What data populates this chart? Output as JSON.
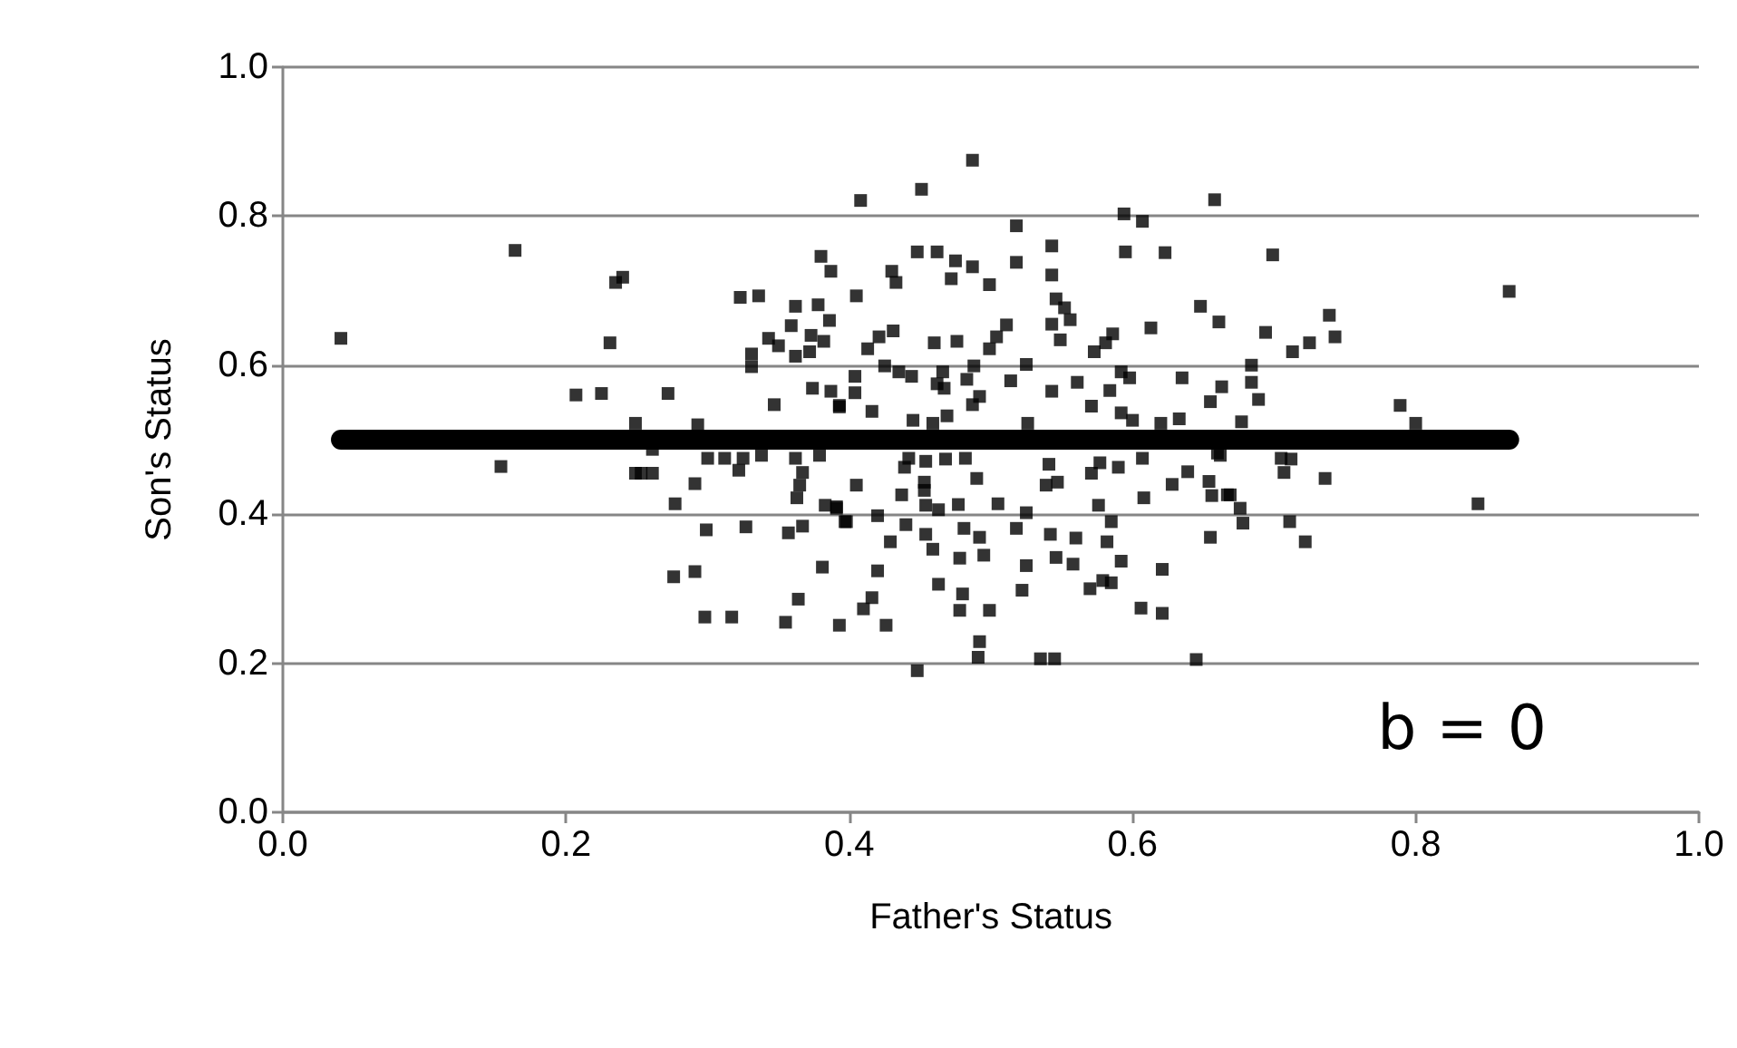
{
  "chart_data": {
    "type": "scatter",
    "xlabel": "Father's Status",
    "ylabel": "Son's Status",
    "xlim": [
      0,
      1
    ],
    "ylim": [
      0,
      1
    ],
    "xticks": [
      {
        "value": 0,
        "label": "0.0"
      },
      {
        "value": 0.2,
        "label": "0.2"
      },
      {
        "value": 0.4,
        "label": "0.4"
      },
      {
        "value": 0.6,
        "label": "0.6"
      },
      {
        "value": 0.8,
        "label": "0.8"
      },
      {
        "value": 1,
        "label": "1.0"
      }
    ],
    "yticks": [
      {
        "value": 0,
        "label": "0.0"
      },
      {
        "value": 0.2,
        "label": "0.2"
      },
      {
        "value": 0.4,
        "label": "0.4"
      },
      {
        "value": 0.6,
        "label": "0.6"
      },
      {
        "value": 0.8,
        "label": "0.8"
      },
      {
        "value": 1,
        "label": "1.0"
      }
    ],
    "grid": "y",
    "annotations": [
      "b = 0"
    ],
    "series": [
      {
        "type": "scatter",
        "color": "#000000",
        "marker": "square",
        "x": [
          0.041,
          0.164,
          0.24,
          0.235,
          0.231,
          0.207,
          0.225,
          0.154,
          0.249,
          0.249,
          0.38,
          0.387,
          0.323,
          0.336,
          0.362,
          0.378,
          0.386,
          0.359,
          0.343,
          0.35,
          0.373,
          0.382,
          0.362,
          0.372,
          0.331,
          0.331,
          0.272,
          0.347,
          0.374,
          0.387,
          0.393,
          0.293,
          0.261,
          0.3,
          0.312,
          0.325,
          0.322,
          0.338,
          0.362,
          0.367,
          0.365,
          0.363,
          0.379,
          0.253,
          0.261,
          0.291,
          0.277,
          0.299,
          0.327,
          0.357,
          0.367,
          0.383,
          0.391,
          0.397,
          0.276,
          0.291,
          0.381,
          0.364,
          0.298,
          0.317,
          0.355,
          0.393,
          0.487,
          0.451,
          0.408,
          0.518,
          0.448,
          0.462,
          0.475,
          0.487,
          0.518,
          0.43,
          0.433,
          0.472,
          0.499,
          0.405,
          0.431,
          0.421,
          0.413,
          0.46,
          0.476,
          0.511,
          0.504,
          0.499,
          0.425,
          0.435,
          0.444,
          0.466,
          0.462,
          0.467,
          0.488,
          0.483,
          0.525,
          0.514,
          0.404,
          0.404,
          0.393,
          0.492,
          0.487,
          0.416,
          0.445,
          0.459,
          0.469,
          0.442,
          0.454,
          0.468,
          0.482,
          0.439,
          0.453,
          0.49,
          0.405,
          0.453,
          0.437,
          0.454,
          0.463,
          0.477,
          0.505,
          0.525,
          0.391,
          0.398,
          0.42,
          0.44,
          0.429,
          0.454,
          0.459,
          0.481,
          0.492,
          0.495,
          0.478,
          0.518,
          0.525,
          0.42,
          0.463,
          0.48,
          0.522,
          0.416,
          0.41,
          0.426,
          0.478,
          0.499,
          0.492,
          0.491,
          0.448,
          0.658,
          0.594,
          0.607,
          0.543,
          0.595,
          0.623,
          0.543,
          0.546,
          0.552,
          0.556,
          0.543,
          0.549,
          0.586,
          0.581,
          0.573,
          0.613,
          0.648,
          0.661,
          0.543,
          0.561,
          0.584,
          0.571,
          0.592,
          0.598,
          0.635,
          0.663,
          0.655,
          0.592,
          0.6,
          0.62,
          0.633,
          0.526,
          0.541,
          0.577,
          0.571,
          0.59,
          0.607,
          0.639,
          0.628,
          0.66,
          0.654,
          0.656,
          0.667,
          0.539,
          0.547,
          0.608,
          0.576,
          0.585,
          0.542,
          0.56,
          0.582,
          0.655,
          0.546,
          0.558,
          0.592,
          0.621,
          0.57,
          0.579,
          0.585,
          0.606,
          0.621,
          0.535,
          0.545,
          0.645,
          0.699,
          0.694,
          0.739,
          0.743,
          0.725,
          0.713,
          0.684,
          0.684,
          0.689,
          0.789,
          0.8,
          0.677,
          0.662,
          0.705,
          0.712,
          0.707,
          0.736,
          0.669,
          0.676,
          0.678,
          0.711,
          0.722,
          0.866,
          0.844
        ],
        "values": [
          0.636,
          0.754,
          0.718,
          0.711,
          0.63,
          0.56,
          0.562,
          0.464,
          0.522,
          0.455,
          0.746,
          0.726,
          0.691,
          0.693,
          0.679,
          0.681,
          0.66,
          0.653,
          0.636,
          0.626,
          0.64,
          0.632,
          0.612,
          0.618,
          0.615,
          0.598,
          0.562,
          0.547,
          0.569,
          0.565,
          0.544,
          0.52,
          0.487,
          0.475,
          0.475,
          0.475,
          0.459,
          0.479,
          0.475,
          0.456,
          0.439,
          0.422,
          0.479,
          0.455,
          0.455,
          0.441,
          0.414,
          0.379,
          0.383,
          0.375,
          0.384,
          0.412,
          0.408,
          0.39,
          0.316,
          0.323,
          0.329,
          0.286,
          0.262,
          0.262,
          0.255,
          0.251,
          0.875,
          0.836,
          0.821,
          0.787,
          0.752,
          0.752,
          0.74,
          0.732,
          0.738,
          0.726,
          0.711,
          0.716,
          0.708,
          0.693,
          0.646,
          0.638,
          0.622,
          0.63,
          0.632,
          0.654,
          0.638,
          0.622,
          0.599,
          0.591,
          0.585,
          0.591,
          0.575,
          0.569,
          0.599,
          0.581,
          0.601,
          0.579,
          0.585,
          0.563,
          0.546,
          0.558,
          0.547,
          0.538,
          0.526,
          0.522,
          0.532,
          0.475,
          0.471,
          0.474,
          0.475,
          0.463,
          0.443,
          0.448,
          0.439,
          0.432,
          0.426,
          0.412,
          0.406,
          0.413,
          0.414,
          0.402,
          0.41,
          0.39,
          0.398,
          0.386,
          0.363,
          0.373,
          0.353,
          0.381,
          0.369,
          0.345,
          0.341,
          0.381,
          0.331,
          0.324,
          0.306,
          0.293,
          0.298,
          0.288,
          0.273,
          0.251,
          0.271,
          0.271,
          0.229,
          0.208,
          0.19,
          0.822,
          0.803,
          0.793,
          0.76,
          0.752,
          0.751,
          0.721,
          0.689,
          0.677,
          0.661,
          0.655,
          0.634,
          0.642,
          0.63,
          0.618,
          0.65,
          0.679,
          0.658,
          0.565,
          0.577,
          0.566,
          0.545,
          0.591,
          0.583,
          0.583,
          0.571,
          0.551,
          0.536,
          0.526,
          0.522,
          0.528,
          0.522,
          0.467,
          0.469,
          0.455,
          0.463,
          0.475,
          0.457,
          0.44,
          0.482,
          0.444,
          0.425,
          0.426,
          0.439,
          0.443,
          0.422,
          0.412,
          0.39,
          0.373,
          0.368,
          0.363,
          0.369,
          0.342,
          0.333,
          0.337,
          0.326,
          0.3,
          0.311,
          0.308,
          0.274,
          0.267,
          0.206,
          0.206,
          0.205,
          0.748,
          0.644,
          0.667,
          0.638,
          0.63,
          0.618,
          0.6,
          0.577,
          0.554,
          0.546,
          0.522,
          0.524,
          0.479,
          0.475,
          0.474,
          0.456,
          0.448,
          0.426,
          0.408,
          0.388,
          0.39,
          0.363,
          0.699,
          0.414
        ]
      },
      {
        "type": "line",
        "color": "#000000",
        "x": [
          0.041,
          0.866
        ],
        "values": [
          0.5,
          0.5
        ],
        "marker": "none",
        "line_style": "solid"
      }
    ]
  }
}
